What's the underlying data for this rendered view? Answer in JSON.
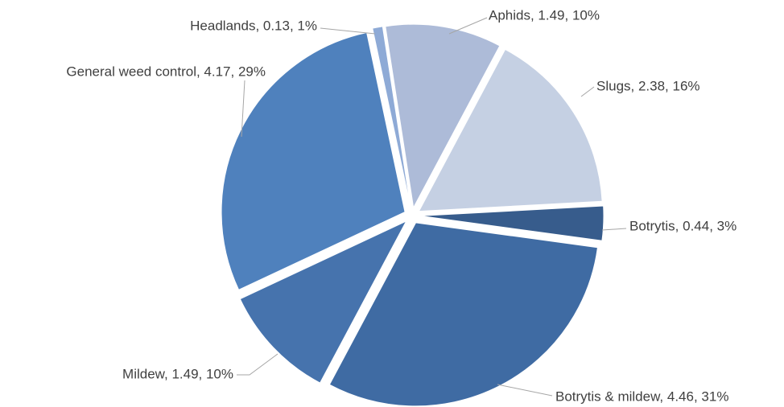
{
  "chart_data": {
    "type": "pie",
    "categories": [
      "Aphids",
      "Slugs",
      "Botrytis",
      "Botrytis & mildew",
      "Mildew",
      "General weed control",
      "Headlands"
    ],
    "values": [
      1.49,
      2.38,
      0.44,
      4.46,
      1.49,
      4.17,
      0.13
    ],
    "value_labels": [
      "Aphids, 1.49, 10%",
      "Slugs, 2.38, 16%",
      "Botrytis, 0.44, 3%",
      "Botrytis & mildew, 4.46, 31%",
      "Mildew, 1.49, 10%",
      "General weed control, 4.17, 29%",
      "Headlands, 0.13, 1%"
    ],
    "colors": [
      "#adbbd8",
      "#c5d0e3",
      "#375c8c",
      "#3f6ba3",
      "#4673ad",
      "#4f81bd",
      "#8eaad6"
    ]
  }
}
